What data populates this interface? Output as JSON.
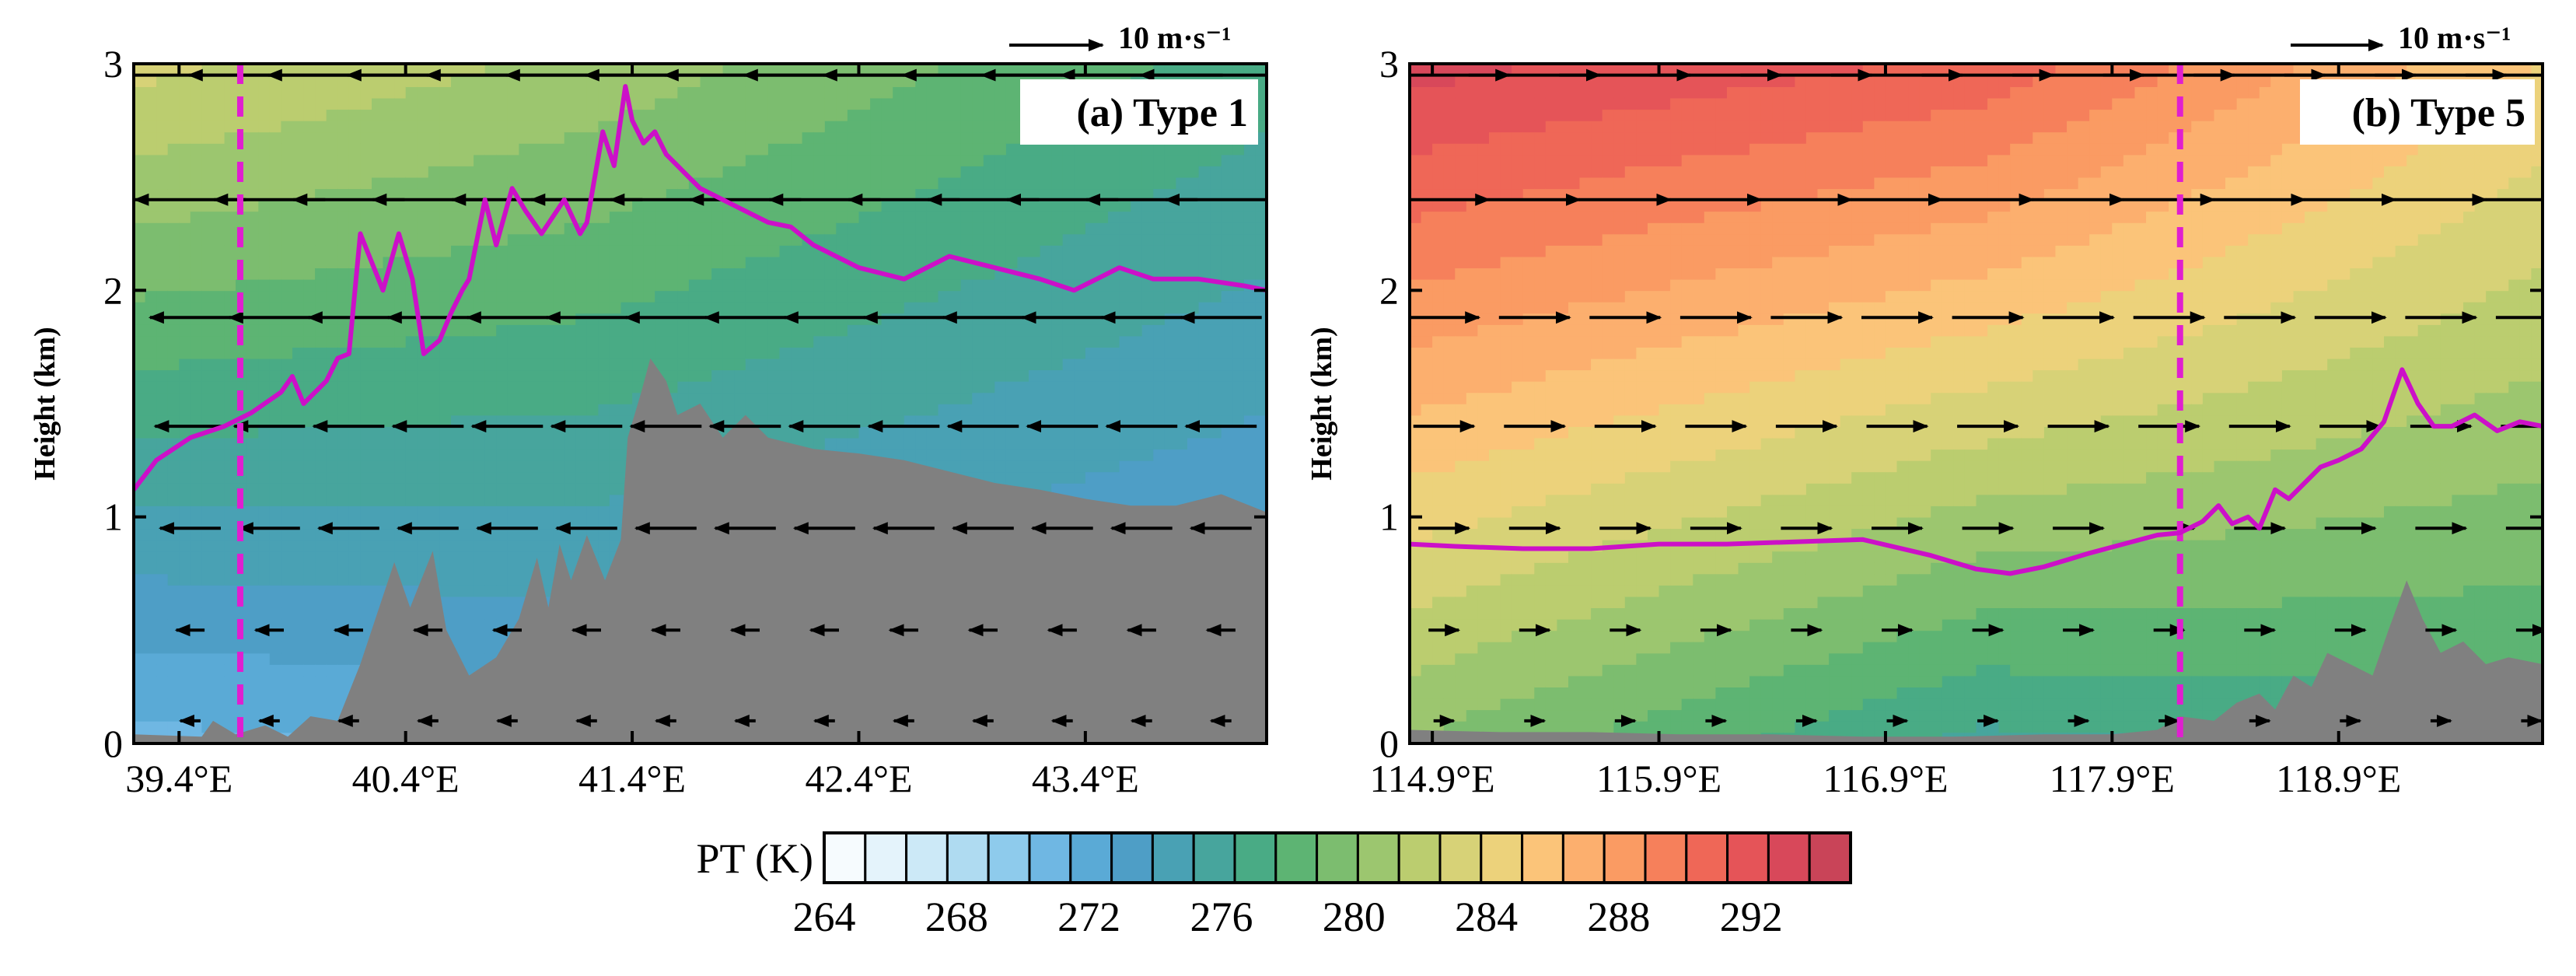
{
  "colors": {
    "terrain": "#808080",
    "pbl": "#cc10c8",
    "site": "#e01fd0",
    "colormap": [
      "#f6fbfe",
      "#e4f3fb",
      "#cce9f7",
      "#afdbf1",
      "#8ecbec",
      "#6fb7e3",
      "#5aaad6",
      "#4e9ec6",
      "#49a1b4",
      "#47a59d",
      "#49ab85",
      "#5db473",
      "#7cbd6f",
      "#9cc66f",
      "#bbcd6f",
      "#d7d277",
      "#ecd27b",
      "#fbc479",
      "#fcaf6e",
      "#fa9b63",
      "#f6805b",
      "#ef6757",
      "#e55458",
      "#d8485a",
      "#c94458"
    ]
  },
  "colorbar": {
    "label": "PT (K)",
    "min": 264,
    "max": 295,
    "ticks": [
      "264",
      "268",
      "272",
      "276",
      "280",
      "284",
      "288",
      "292"
    ]
  },
  "chart_data": [
    {
      "type": "contour",
      "panel_label": "(a) Type 1",
      "ylabel": "Height (km)",
      "ylim": [
        0,
        3
      ],
      "xlim": [
        39.2,
        44.2
      ],
      "yticks": [
        "0",
        "1",
        "2",
        "3"
      ],
      "xticks": [
        39.4,
        40.4,
        41.4,
        42.4,
        43.4
      ],
      "xtick_labels": [
        "39.4°E",
        "40.4°E",
        "41.4°E",
        "42.4°E",
        "43.4°E"
      ],
      "reference_vector": "10 m·s⁻¹",
      "site_longitude": 39.67,
      "theta_profile": {
        "lon": [
          39.2,
          41.2,
          44.2
        ],
        "theta_at_ground": [
          271,
          272,
          271
        ],
        "theta_at_3km": [
          283,
          281,
          277
        ]
      },
      "pbl_height": {
        "lon": [
          39.2,
          39.3,
          39.45,
          39.6,
          39.72,
          39.85,
          39.9,
          39.95,
          40.05,
          40.1,
          40.15,
          40.2,
          40.3,
          40.37,
          40.43,
          40.48,
          40.55,
          40.6,
          40.65,
          40.68,
          40.75,
          40.8,
          40.87,
          40.93,
          41.0,
          41.1,
          41.17,
          41.2,
          41.27,
          41.32,
          41.37,
          41.4,
          41.45,
          41.5,
          41.55,
          41.6,
          41.65,
          41.7,
          41.8,
          41.9,
          42.0,
          42.1,
          42.2,
          42.4,
          42.6,
          42.8,
          43.0,
          43.2,
          43.35,
          43.45,
          43.55,
          43.7,
          43.9,
          44.1,
          44.2
        ],
        "km": [
          1.12,
          1.25,
          1.35,
          1.4,
          1.46,
          1.55,
          1.62,
          1.5,
          1.6,
          1.7,
          1.72,
          2.25,
          2.0,
          2.25,
          2.05,
          1.72,
          1.78,
          1.9,
          2.0,
          2.05,
          2.4,
          2.2,
          2.45,
          2.35,
          2.25,
          2.4,
          2.25,
          2.3,
          2.7,
          2.55,
          2.9,
          2.75,
          2.65,
          2.7,
          2.6,
          2.55,
          2.5,
          2.45,
          2.4,
          2.35,
          2.3,
          2.28,
          2.2,
          2.1,
          2.05,
          2.15,
          2.1,
          2.05,
          2.0,
          2.05,
          2.1,
          2.05,
          2.05,
          2.02,
          2.0
        ]
      },
      "terrain": {
        "lon": [
          39.2,
          39.5,
          39.55,
          39.65,
          39.78,
          39.88,
          39.98,
          40.1,
          40.2,
          40.35,
          40.42,
          40.52,
          40.58,
          40.68,
          40.8,
          40.9,
          40.98,
          41.03,
          41.08,
          41.13,
          41.2,
          41.28,
          41.35,
          41.38,
          41.44,
          41.48,
          41.55,
          41.6,
          41.7,
          41.8,
          41.9,
          42.0,
          42.2,
          42.4,
          42.6,
          42.8,
          43.0,
          43.2,
          43.4,
          43.6,
          43.8,
          44.0,
          44.2
        ],
        "km": [
          0.04,
          0.03,
          0.1,
          0.04,
          0.08,
          0.03,
          0.12,
          0.1,
          0.35,
          0.8,
          0.6,
          0.85,
          0.5,
          0.3,
          0.38,
          0.55,
          0.82,
          0.6,
          0.88,
          0.72,
          0.92,
          0.72,
          0.9,
          1.35,
          1.55,
          1.7,
          1.6,
          1.45,
          1.5,
          1.35,
          1.45,
          1.35,
          1.3,
          1.28,
          1.25,
          1.2,
          1.15,
          1.12,
          1.08,
          1.05,
          1.05,
          1.1,
          1.02
        ]
      },
      "wind": {
        "direction": "westward",
        "lon": [
          39.45,
          39.8,
          40.15,
          40.5,
          40.85,
          41.2,
          41.55,
          41.9,
          42.25,
          42.6,
          42.95,
          43.3,
          43.65,
          44.0
        ],
        "levels_km": [
          0.1,
          0.5,
          0.95,
          1.4,
          1.88,
          2.4,
          2.95
        ],
        "u_ms": [
          -1.0,
          -1.4,
          -3.0,
          -3.5,
          -4.0,
          -5.5,
          -8.0
        ]
      }
    },
    {
      "type": "contour",
      "panel_label": "(b) Type 5",
      "ylabel": "Height (km)",
      "ylim": [
        0,
        3
      ],
      "xlim": [
        114.8,
        119.8
      ],
      "yticks": [
        "0",
        "1",
        "2",
        "3"
      ],
      "xticks": [
        114.9,
        115.9,
        116.9,
        117.9,
        118.9
      ],
      "xtick_labels": [
        "114.9°E",
        "115.9°E",
        "116.9°E",
        "117.9°E",
        "118.9°E"
      ],
      "reference_vector": "10 m·s⁻¹",
      "site_longitude": 118.2,
      "theta_profile": {
        "lon": [
          114.8,
          117.3,
          119.8
        ],
        "theta_at_ground": [
          280,
          276,
          277
        ],
        "theta_at_3km": [
          293,
          291,
          285
        ]
      },
      "pbl_height": {
        "lon": [
          114.8,
          115.0,
          115.3,
          115.6,
          115.9,
          116.2,
          116.5,
          116.8,
          117.1,
          117.3,
          117.45,
          117.6,
          117.8,
          117.95,
          118.1,
          118.2,
          118.3,
          118.37,
          118.43,
          118.5,
          118.55,
          118.62,
          118.68,
          118.75,
          118.82,
          118.9,
          119.0,
          119.1,
          119.18,
          119.25,
          119.32,
          119.4,
          119.5,
          119.6,
          119.7,
          119.8
        ],
        "km": [
          0.88,
          0.87,
          0.86,
          0.86,
          0.88,
          0.88,
          0.89,
          0.9,
          0.83,
          0.77,
          0.75,
          0.78,
          0.84,
          0.88,
          0.92,
          0.93,
          0.98,
          1.05,
          0.97,
          1.0,
          0.95,
          1.12,
          1.08,
          1.15,
          1.22,
          1.25,
          1.3,
          1.42,
          1.65,
          1.5,
          1.4,
          1.4,
          1.45,
          1.38,
          1.42,
          1.4
        ]
      },
      "terrain": {
        "lon": [
          114.8,
          115.2,
          115.6,
          116.0,
          116.4,
          116.8,
          117.2,
          117.6,
          117.9,
          118.1,
          118.2,
          118.35,
          118.45,
          118.55,
          118.62,
          118.7,
          118.78,
          118.85,
          118.95,
          119.05,
          119.12,
          119.2,
          119.27,
          119.35,
          119.45,
          119.55,
          119.65,
          119.75,
          119.8
        ],
        "km": [
          0.06,
          0.05,
          0.05,
          0.04,
          0.04,
          0.03,
          0.03,
          0.04,
          0.04,
          0.06,
          0.12,
          0.1,
          0.18,
          0.22,
          0.15,
          0.3,
          0.25,
          0.4,
          0.35,
          0.3,
          0.5,
          0.72,
          0.55,
          0.4,
          0.45,
          0.35,
          0.38,
          0.36,
          0.35
        ]
      },
      "wind": {
        "direction": "eastward",
        "lon": [
          114.95,
          115.35,
          115.75,
          116.15,
          116.55,
          116.95,
          117.35,
          117.75,
          118.15,
          118.55,
          118.95,
          119.35,
          119.75
        ],
        "levels_km": [
          0.1,
          0.5,
          0.95,
          1.4,
          1.88,
          2.4,
          2.95
        ],
        "u_ms": [
          1.0,
          1.5,
          2.5,
          3.0,
          3.5,
          4.5,
          6.5
        ]
      }
    }
  ]
}
